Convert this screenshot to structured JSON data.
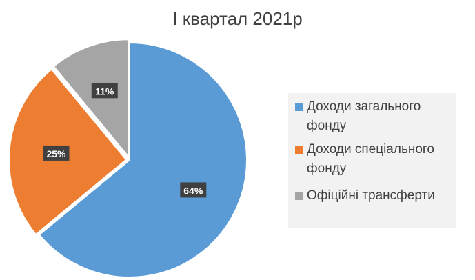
{
  "chart_data": {
    "type": "pie",
    "title": "I квартал 2021р",
    "categories": [
      "Доходи загального фонду",
      "Доходи спеціального фонду",
      "Офіційні трансферти"
    ],
    "values": [
      64,
      25,
      11
    ],
    "labels": [
      "64%",
      "25%",
      "11%"
    ],
    "colors": [
      "#5b9bd5",
      "#ed7d31",
      "#a5a5a5"
    ],
    "legend_position": "right"
  },
  "legend": {
    "items": [
      {
        "line1": "Доходи загального",
        "line2": "фонду"
      },
      {
        "line1": "Доходи спеціального",
        "line2": "фонду"
      },
      {
        "line1": "Офіційні трансферти",
        "line2": ""
      }
    ]
  }
}
